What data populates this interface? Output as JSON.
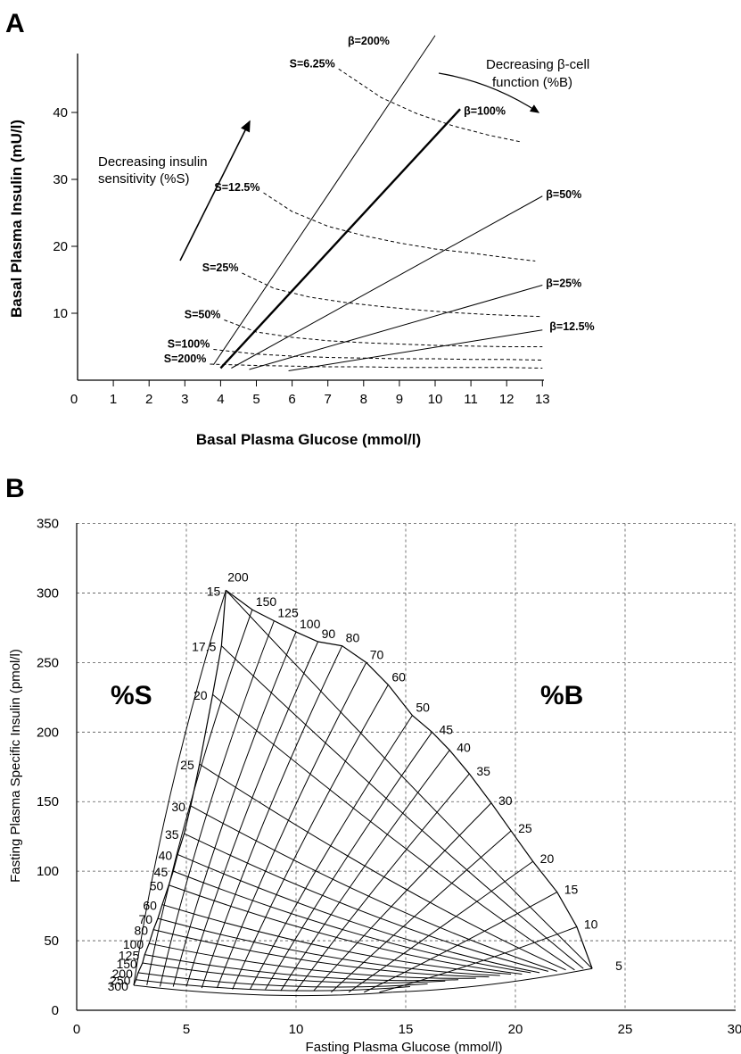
{
  "chart_data": [
    {
      "panel": "A",
      "type": "line",
      "xlabel": "Basal Plasma Glucose (mmol/l)",
      "ylabel": "Basal Plasma Insulin (mU/l)",
      "x_ticks": [
        "0",
        "1",
        "2",
        "3",
        "4",
        "5",
        "6",
        "7",
        "8",
        "9",
        "10",
        "11",
        "12",
        "13"
      ],
      "y_ticks": [
        "10",
        "20",
        "30",
        "40"
      ],
      "xlim": [
        0,
        13.2
      ],
      "ylim": [
        0,
        50
      ],
      "grid": false,
      "beta_series": [
        {
          "name": "β=200%",
          "x": [
            3.8,
            10.0
          ],
          "y": [
            2.3,
            51.5
          ]
        },
        {
          "name": "β=100%",
          "x": [
            4.0,
            10.7
          ],
          "y": [
            1.8,
            40.5
          ]
        },
        {
          "name": "β=50%",
          "x": [
            4.3,
            13.0
          ],
          "y": [
            1.8,
            27.5
          ]
        },
        {
          "name": "β=25%",
          "x": [
            4.8,
            13.0
          ],
          "y": [
            1.6,
            14.2
          ]
        },
        {
          "name": "β=12.5%",
          "x": [
            5.9,
            13.0
          ],
          "y": [
            1.4,
            7.5
          ]
        }
      ],
      "s_series": [
        {
          "name": "S=6.25%",
          "x": [
            7.3,
            8.5,
            9.5,
            10.5,
            11.5,
            12.4
          ],
          "y": [
            46.5,
            42.2,
            39.8,
            38.0,
            36.6,
            35.6
          ]
        },
        {
          "name": "S=12.5%",
          "x": [
            5.2,
            6.0,
            7.0,
            8.0,
            9.0,
            10.0,
            11.0,
            12.0,
            12.8
          ],
          "y": [
            28.0,
            25.2,
            23.0,
            21.6,
            20.5,
            19.6,
            19.0,
            18.3,
            17.8
          ]
        },
        {
          "name": "S=25%",
          "x": [
            4.6,
            5.5,
            6.5,
            7.5,
            8.5,
            9.5,
            10.5,
            11.5,
            12.5,
            13.0
          ],
          "y": [
            16.0,
            13.7,
            12.4,
            11.6,
            11.0,
            10.5,
            10.1,
            9.8,
            9.6,
            9.5
          ]
        },
        {
          "name": "S=50%",
          "x": [
            4.1,
            5.0,
            6.0,
            7.0,
            8.0,
            9.0,
            10.0,
            11.0,
            12.0,
            13.0
          ],
          "y": [
            9.0,
            7.2,
            6.4,
            5.9,
            5.6,
            5.4,
            5.2,
            5.1,
            5.0,
            5.0
          ]
        },
        {
          "name": "S=100%",
          "x": [
            3.8,
            5.0,
            6.0,
            7.0,
            8.0,
            9.0,
            10.0,
            11.0,
            12.0,
            13.0
          ],
          "y": [
            4.6,
            3.9,
            3.6,
            3.4,
            3.3,
            3.2,
            3.2,
            3.1,
            3.1,
            3.0
          ]
        },
        {
          "name": "S=200%",
          "x": [
            3.7,
            5.0,
            6.0,
            7.0,
            8.0,
            9.0,
            10.0,
            11.0,
            12.0,
            13.0
          ],
          "y": [
            2.4,
            2.2,
            2.1,
            2.0,
            2.0,
            1.9,
            1.9,
            1.9,
            1.9,
            1.8
          ]
        }
      ],
      "annotations": {
        "beta_function_line1": "Decreasing β-cell",
        "beta_function_line2": "function (%B)",
        "sensitivity_line1": "Decreasing insulin",
        "sensitivity_line2": "sensitivity (%S)"
      }
    },
    {
      "panel": "B",
      "type": "line",
      "xlabel": "Fasting Plasma Glucose (mmol/l)",
      "ylabel": "Fasting Plasma Specific Insulin (pmol/l)",
      "x_ticks": [
        "0",
        "5",
        "10",
        "15",
        "20",
        "25",
        "30"
      ],
      "y_ticks": [
        "0",
        "50",
        "100",
        "150",
        "200",
        "250",
        "300",
        "350"
      ],
      "xlim": [
        0,
        30
      ],
      "ylim": [
        0,
        350
      ],
      "grid": true,
      "s_region_label": "%S",
      "b_region_label": "%B",
      "s_values": [
        "15",
        "17.5",
        "20",
        "25",
        "30",
        "35",
        "40",
        "45",
        "50",
        "60",
        "70",
        "80",
        "100",
        "125",
        "150",
        "200",
        "250",
        "300"
      ],
      "b_values": [
        "200",
        "150",
        "125",
        "100",
        "90",
        "80",
        "70",
        "60",
        "50",
        "45",
        "40",
        "35",
        "30",
        "25",
        "20",
        "15",
        "10",
        "5"
      ],
      "s_curve_endpoints": [
        {
          "x": [
            6.8,
            23.5
          ],
          "y": [
            302,
            30
          ]
        },
        {
          "x": [
            6.6,
            23.1
          ],
          "y": [
            262,
            30
          ]
        },
        {
          "x": [
            6.2,
            22.7
          ],
          "y": [
            227,
            29
          ]
        },
        {
          "x": [
            5.6,
            22.3
          ],
          "y": [
            177,
            29
          ]
        },
        {
          "x": [
            5.2,
            21.9
          ],
          "y": [
            147,
            28
          ]
        },
        {
          "x": [
            4.9,
            21.5
          ],
          "y": [
            127,
            28
          ]
        },
        {
          "x": [
            4.6,
            21.1
          ],
          "y": [
            112,
            27
          ]
        },
        {
          "x": [
            4.4,
            20.7
          ],
          "y": [
            100,
            27
          ]
        },
        {
          "x": [
            4.2,
            20.3
          ],
          "y": [
            90,
            26
          ]
        },
        {
          "x": [
            3.9,
            19.8
          ],
          "y": [
            76,
            26
          ]
        },
        {
          "x": [
            3.7,
            19.3
          ],
          "y": [
            66,
            25
          ]
        },
        {
          "x": [
            3.5,
            18.8
          ],
          "y": [
            58,
            24
          ]
        },
        {
          "x": [
            3.3,
            18.2
          ],
          "y": [
            48,
            23
          ]
        },
        {
          "x": [
            3.1,
            17.4
          ],
          "y": [
            40,
            22
          ]
        },
        {
          "x": [
            3.0,
            16.8
          ],
          "y": [
            34,
            21
          ]
        },
        {
          "x": [
            2.8,
            16.0
          ],
          "y": [
            27,
            19
          ]
        },
        {
          "x": [
            2.7,
            15.2
          ],
          "y": [
            22,
            17
          ]
        },
        {
          "x": [
            2.6,
            14.4
          ],
          "y": [
            18,
            13
          ]
        }
      ],
      "b_curve_endpoints": [
        {
          "x": [
            6.8,
            2.6
          ],
          "y": [
            302,
            18
          ]
        },
        {
          "x": [
            8.0,
            3.2
          ],
          "y": [
            288,
            18
          ]
        },
        {
          "x": [
            9.0,
            3.8
          ],
          "y": [
            280,
            17
          ]
        },
        {
          "x": [
            10.0,
            4.4
          ],
          "y": [
            272,
            17
          ]
        },
        {
          "x": [
            11.0,
            5.0
          ],
          "y": [
            265,
            17
          ]
        },
        {
          "x": [
            12.1,
            5.7
          ],
          "y": [
            262,
            16
          ]
        },
        {
          "x": [
            13.2,
            6.4
          ],
          "y": [
            250,
            16
          ]
        },
        {
          "x": [
            14.2,
            7.1
          ],
          "y": [
            234,
            15
          ]
        },
        {
          "x": [
            15.3,
            7.9
          ],
          "y": [
            212,
            15
          ]
        },
        {
          "x": [
            16.2,
            8.6
          ],
          "y": [
            200,
            15
          ]
        },
        {
          "x": [
            17.0,
            9.3
          ],
          "y": [
            187,
            14
          ]
        },
        {
          "x": [
            17.9,
            10.0
          ],
          "y": [
            170,
            14
          ]
        },
        {
          "x": [
            18.9,
            10.8
          ],
          "y": [
            149,
            14
          ]
        },
        {
          "x": [
            19.8,
            11.6
          ],
          "y": [
            129,
            13
          ]
        },
        {
          "x": [
            20.8,
            12.4
          ],
          "y": [
            107,
            13
          ]
        },
        {
          "x": [
            21.9,
            13.1
          ],
          "y": [
            85,
            13
          ]
        },
        {
          "x": [
            22.8,
            13.8
          ],
          "y": [
            60,
            13
          ]
        },
        {
          "x": [
            23.5,
            14.4
          ],
          "y": [
            30,
            13
          ]
        }
      ]
    }
  ]
}
